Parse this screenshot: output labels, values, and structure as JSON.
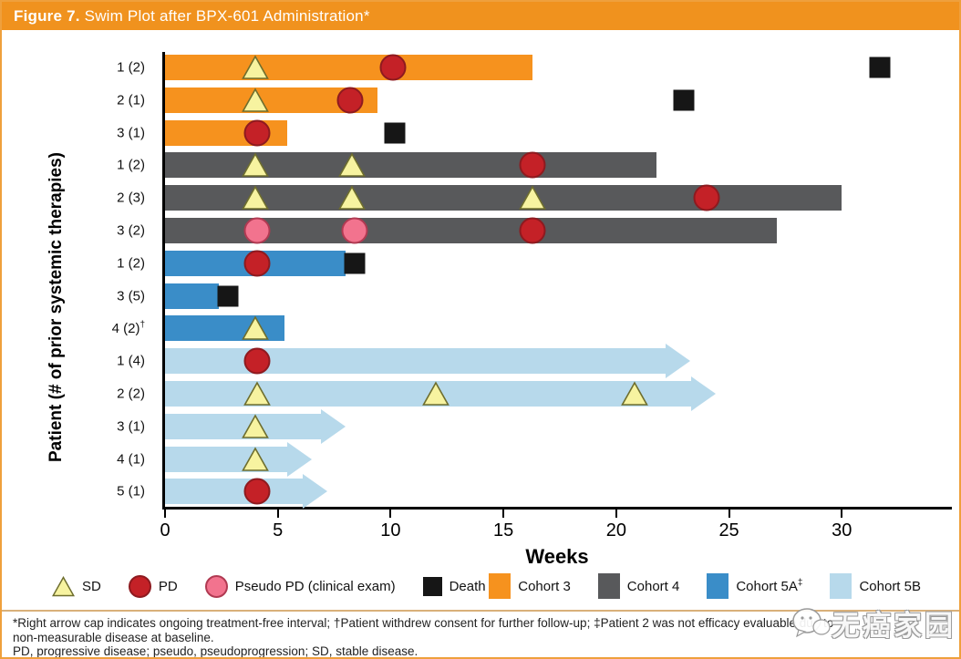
{
  "header": {
    "title_prefix": "Figure 7.",
    "title_rest": "Swim Plot after BPX-601 Administration*"
  },
  "colors": {
    "header_bar": "#F0921E",
    "frame": "#EFA03C",
    "cohort3": "#F6921E",
    "cohort4": "#58595B",
    "cohort5A": "#3A8DC8",
    "cohort5B": "#B7D9EB",
    "sd_fill": "#F7F3A0",
    "sd_stroke": "#6E6E2E",
    "pd_fill": "#C42127",
    "pd_stroke": "#8E1A1F",
    "pseudo_fill": "#F2738E",
    "pseudo_stroke": "#B03A52",
    "death": "#161616"
  },
  "chart_data": {
    "type": "bar",
    "subtype": "swimmer-plot",
    "xlabel": "Weeks",
    "ylabel": "Patient (# of prior systemic therapies)",
    "xlim": [
      0,
      35
    ],
    "xticks": [
      0,
      5,
      10,
      15,
      20,
      25,
      30
    ],
    "marker_legend": [
      {
        "key": "SD",
        "label": "SD"
      },
      {
        "key": "PD",
        "label": "PD"
      },
      {
        "key": "Pseudo",
        "label": "Pseudo PD (clinical exam)"
      },
      {
        "key": "Death",
        "label": "Death"
      }
    ],
    "cohort_legend": [
      {
        "key": "cohort3",
        "label": "Cohort 3",
        "sup": ""
      },
      {
        "key": "cohort4",
        "label": "Cohort 4",
        "sup": ""
      },
      {
        "key": "cohort5A",
        "label": "Cohort 5A",
        "sup": "‡"
      },
      {
        "key": "cohort5B",
        "label": "Cohort 5B",
        "sup": ""
      }
    ],
    "rows": [
      {
        "label": "1 (2)",
        "sup": "",
        "cohort": "cohort3",
        "bar_end_weeks": 16.3,
        "arrow": false,
        "markers": [
          {
            "type": "SD",
            "week": 4.0
          },
          {
            "type": "PD",
            "week": 10.1
          },
          {
            "type": "Death",
            "week": 31.7
          }
        ]
      },
      {
        "label": "2 (1)",
        "sup": "",
        "cohort": "cohort3",
        "bar_end_weeks": 9.4,
        "arrow": false,
        "markers": [
          {
            "type": "SD",
            "week": 4.0
          },
          {
            "type": "PD",
            "week": 8.2
          },
          {
            "type": "Death",
            "week": 23.0
          }
        ]
      },
      {
        "label": "3 (1)",
        "sup": "",
        "cohort": "cohort3",
        "bar_end_weeks": 5.4,
        "arrow": false,
        "markers": [
          {
            "type": "PD",
            "week": 4.1
          },
          {
            "type": "Death",
            "week": 10.2
          }
        ]
      },
      {
        "label": "1 (2)",
        "sup": "",
        "cohort": "cohort4",
        "bar_end_weeks": 21.8,
        "arrow": false,
        "markers": [
          {
            "type": "SD",
            "week": 4.0
          },
          {
            "type": "SD",
            "week": 8.3
          },
          {
            "type": "PD",
            "week": 16.3
          }
        ]
      },
      {
        "label": "2 (3)",
        "sup": "",
        "cohort": "cohort4",
        "bar_end_weeks": 30.0,
        "arrow": false,
        "markers": [
          {
            "type": "SD",
            "week": 4.0
          },
          {
            "type": "SD",
            "week": 8.3
          },
          {
            "type": "SD",
            "week": 16.3
          },
          {
            "type": "PD",
            "week": 24.0
          }
        ]
      },
      {
        "label": "3 (2)",
        "sup": "",
        "cohort": "cohort4",
        "bar_end_weeks": 27.1,
        "arrow": false,
        "markers": [
          {
            "type": "Pseudo",
            "week": 4.1
          },
          {
            "type": "Pseudo",
            "week": 8.4
          },
          {
            "type": "PD",
            "week": 16.3
          }
        ]
      },
      {
        "label": "1 (2)",
        "sup": "",
        "cohort": "cohort5A",
        "bar_end_weeks": 8.0,
        "arrow": false,
        "markers": [
          {
            "type": "PD",
            "week": 4.1
          },
          {
            "type": "Death",
            "week": 8.4
          }
        ]
      },
      {
        "label": "3 (5)",
        "sup": "",
        "cohort": "cohort5A",
        "bar_end_weeks": 2.4,
        "arrow": false,
        "markers": [
          {
            "type": "Death",
            "week": 2.8
          }
        ]
      },
      {
        "label": "4 (2)",
        "sup": "†",
        "cohort": "cohort5A",
        "bar_end_weeks": 5.3,
        "arrow": false,
        "markers": [
          {
            "type": "SD",
            "week": 4.0
          }
        ]
      },
      {
        "label": "1 (4)",
        "sup": "",
        "cohort": "cohort5B",
        "bar_end_weeks": 22.2,
        "arrow": true,
        "markers": [
          {
            "type": "PD",
            "week": 4.1
          }
        ]
      },
      {
        "label": "2 (2)",
        "sup": "",
        "cohort": "cohort5B",
        "bar_end_weeks": 23.3,
        "arrow": true,
        "markers": [
          {
            "type": "SD",
            "week": 4.1
          },
          {
            "type": "SD",
            "week": 12.0
          },
          {
            "type": "SD",
            "week": 20.8
          }
        ]
      },
      {
        "label": "3 (1)",
        "sup": "",
        "cohort": "cohort5B",
        "bar_end_weeks": 6.9,
        "arrow": true,
        "markers": [
          {
            "type": "SD",
            "week": 4.0
          }
        ]
      },
      {
        "label": "4 (1)",
        "sup": "",
        "cohort": "cohort5B",
        "bar_end_weeks": 5.4,
        "arrow": true,
        "markers": [
          {
            "type": "SD",
            "week": 4.0
          }
        ]
      },
      {
        "label": "5 (1)",
        "sup": "",
        "cohort": "cohort5B",
        "bar_end_weeks": 6.1,
        "arrow": true,
        "markers": [
          {
            "type": "PD",
            "week": 4.1
          }
        ]
      }
    ]
  },
  "footnotes": {
    "line1": "*Right arrow cap indicates ongoing treatment-free interval; †Patient withdrew consent for further follow-up; ‡Patient 2 was not efficacy evaluable due to",
    "line2": "non-measurable disease at baseline.",
    "line3": "PD, progressive disease; pseudo, pseudoprogression; SD, stable disease."
  },
  "watermark": {
    "text": "无癌家园"
  }
}
